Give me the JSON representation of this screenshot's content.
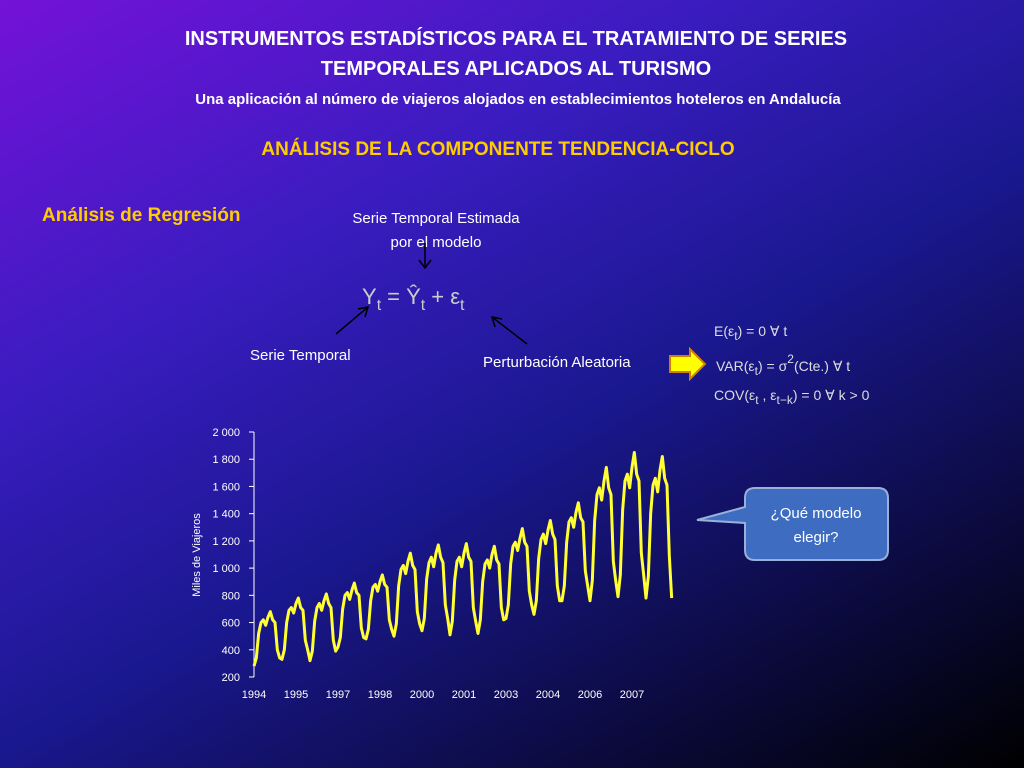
{
  "header": {
    "title_line1": "INSTRUMENTOS ESTADÍSTICOS PARA EL TRATAMIENTO DE SERIES",
    "title_line2": "TEMPORALES APLICADOS AL TURISMO",
    "subtitle": "Una aplicación al número de viajeros alojados en establecimientos hoteleros en Andalucía",
    "section": "ANÁLISIS DE LA COMPONENTE TENDENCIA-CICLO"
  },
  "regression": {
    "heading": "Análisis de Regresión",
    "estimated_line1": "Serie Temporal Estimada",
    "estimated_line2": "por el modelo",
    "formula": [
      "Y",
      "t",
      "= Ŷ",
      "t",
      "+ ε",
      "t"
    ],
    "series_label": "Serie Temporal",
    "disturbance_label": "Perturbación Aleatoria",
    "assumptions": [
      [
        "E(ε",
        "t",
        ") = 0   ∀ t"
      ],
      [
        "VAR(ε",
        "t",
        ") = σ",
        "2",
        "(Cte.)   ∀ t"
      ],
      [
        "COV(ε",
        "t",
        " , ε",
        "t−k",
        ") = 0   ∀ k > 0"
      ]
    ]
  },
  "callout": {
    "line1": "¿Qué modelo",
    "line2": "elegir?"
  },
  "chart_data": {
    "type": "line",
    "y_label": "Miles de Viajeros",
    "color": "#ffff33",
    "categories": [
      "1994",
      null,
      null,
      null,
      null,
      null,
      null,
      null,
      null,
      null,
      null,
      null,
      null,
      null,
      null,
      null,
      null,
      null,
      "1995",
      null,
      null,
      null,
      null,
      null,
      null,
      null,
      null,
      null,
      null,
      null,
      null,
      null,
      null,
      null,
      null,
      null,
      "1997",
      null,
      null,
      null,
      null,
      null,
      null,
      null,
      null,
      null,
      null,
      null,
      null,
      null,
      null,
      null,
      null,
      null,
      "1998",
      null,
      null,
      null,
      null,
      null,
      null,
      null,
      null,
      null,
      null,
      null,
      null,
      null,
      null,
      null,
      null,
      null,
      "2000",
      null,
      null,
      null,
      null,
      null,
      null,
      null,
      null,
      null,
      null,
      null,
      null,
      null,
      null,
      null,
      null,
      null,
      "2001",
      null,
      null,
      null,
      null,
      null,
      null,
      null,
      null,
      null,
      null,
      null,
      null,
      null,
      null,
      null,
      null,
      null,
      "2003",
      null,
      null,
      null,
      null,
      null,
      null,
      null,
      null,
      null,
      null,
      null,
      null,
      null,
      null,
      null,
      null,
      null,
      "2004",
      null,
      null,
      null,
      null,
      null,
      null,
      null,
      null,
      null,
      null,
      null,
      null,
      null,
      null,
      null,
      null,
      null,
      "2006",
      null,
      null,
      null,
      null,
      null,
      null,
      null,
      null,
      null,
      null,
      null,
      null,
      null,
      null,
      null,
      null,
      null,
      "2007",
      null,
      null,
      null,
      null,
      null,
      null,
      null,
      null,
      null,
      null,
      null,
      null,
      null,
      null,
      null,
      null,
      null
    ],
    "values": [
      280,
      340,
      520,
      600,
      620,
      580,
      640,
      680,
      620,
      600,
      400,
      340,
      330,
      400,
      600,
      690,
      710,
      670,
      740,
      780,
      710,
      690,
      470,
      400,
      320,
      390,
      610,
      710,
      740,
      690,
      760,
      810,
      740,
      710,
      470,
      390,
      420,
      490,
      700,
      800,
      820,
      770,
      840,
      890,
      820,
      800,
      560,
      490,
      480,
      550,
      760,
      860,
      880,
      830,
      900,
      950,
      880,
      860,
      620,
      550,
      500,
      590,
      870,
      990,
      1020,
      960,
      1050,
      1110,
      1020,
      990,
      680,
      590,
      540,
      630,
      920,
      1040,
      1080,
      1010,
      1110,
      1170,
      1080,
      1040,
      730,
      630,
      510,
      610,
      910,
      1050,
      1080,
      1010,
      1110,
      1180,
      1080,
      1050,
      710,
      610,
      520,
      620,
      900,
      1030,
      1060,
      1000,
      1100,
      1160,
      1060,
      1030,
      710,
      620,
      630,
      730,
      1030,
      1160,
      1190,
      1130,
      1220,
      1290,
      1190,
      1160,
      830,
      730,
      660,
      760,
      1070,
      1210,
      1250,
      1180,
      1280,
      1350,
      1250,
      1210,
      870,
      760,
      760,
      870,
      1190,
      1340,
      1370,
      1300,
      1410,
      1480,
      1370,
      1340,
      980,
      870,
      760,
      910,
      1350,
      1540,
      1590,
      1500,
      1640,
      1740,
      1590,
      1540,
      1050,
      910,
      790,
      950,
      1430,
      1640,
      1690,
      1590,
      1740,
      1850,
      1690,
      1640,
      1110,
      950,
      780,
      940,
      1400,
      1610,
      1660,
      1560,
      1720,
      1820,
      1660,
      1610,
      1090,
      780
    ],
    "ylim": [
      200,
      2000
    ],
    "yticks": [
      200,
      400,
      600,
      800,
      {
        "value": 1000,
        "label": "1 000"
      },
      {
        "value": 1200,
        "label": "1 200"
      },
      {
        "value": 1400,
        "label": "1 400"
      },
      {
        "value": 1600,
        "label": "1 600"
      },
      {
        "value": 1800,
        "label": "1 800"
      },
      {
        "value": 2000,
        "label": "2 000"
      }
    ]
  }
}
